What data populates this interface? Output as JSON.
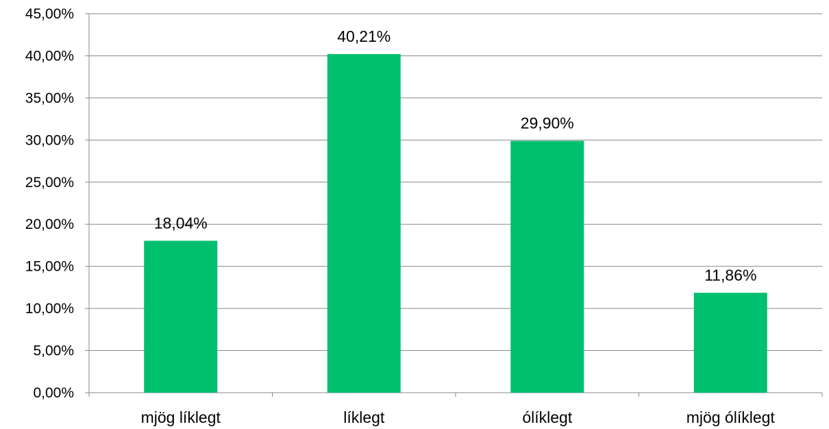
{
  "chart_data": {
    "type": "bar",
    "title": "",
    "xlabel": "",
    "ylabel": "",
    "categories": [
      "mjög líklegt",
      "líklegt",
      "ólíklegt",
      "mjög ólíklegt"
    ],
    "values": [
      18.04,
      40.21,
      29.9,
      11.86
    ],
    "data_labels": [
      "18,04%",
      "40,21%",
      "29,90%",
      "11,86%"
    ],
    "ylim": [
      0,
      45
    ],
    "yticks": [
      0,
      5,
      10,
      15,
      20,
      25,
      30,
      35,
      40,
      45
    ],
    "ytick_labels": [
      "0,00%",
      "5,00%",
      "10,00%",
      "15,00%",
      "20,00%",
      "25,00%",
      "30,00%",
      "35,00%",
      "40,00%",
      "45,00%"
    ],
    "grid": true,
    "legend": "none",
    "bar_color": "#00bf6f"
  }
}
